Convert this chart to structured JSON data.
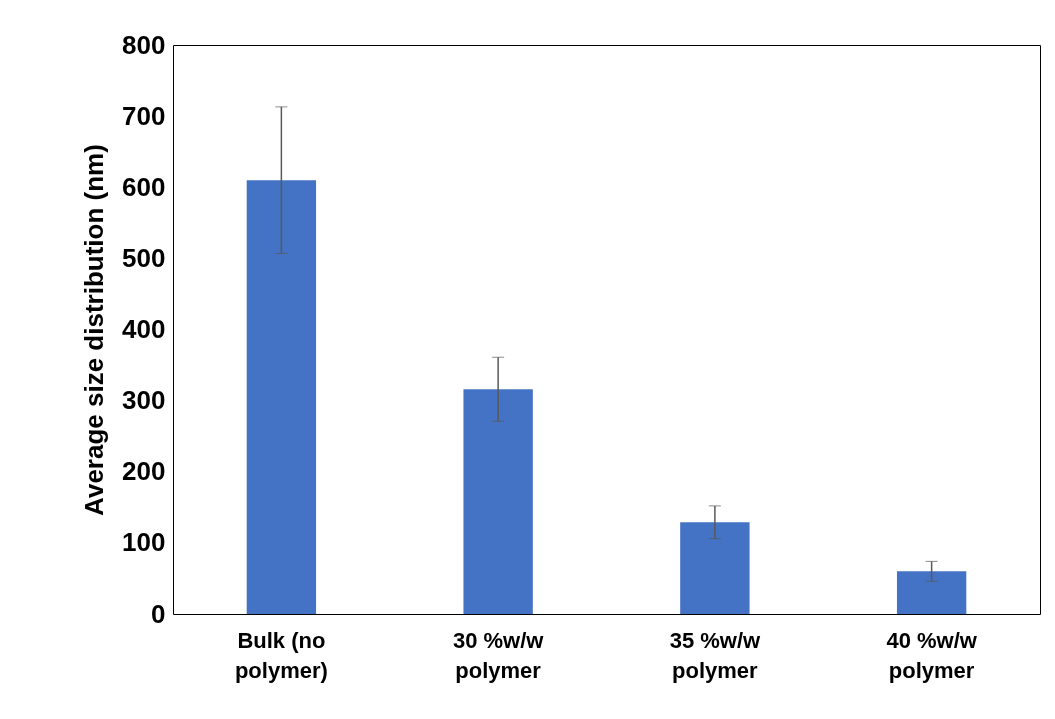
{
  "chart_data": {
    "type": "bar",
    "ylabel": "Average size distribution (nm)",
    "categories": [
      "Bulk (no polymer)",
      "30 %w/w polymer",
      "35 %w/w polymer",
      "40 %w/w polymer"
    ],
    "values": [
      610,
      316,
      129,
      60
    ],
    "errors": [
      103,
      45,
      23,
      14
    ],
    "color": "#4472c4",
    "ylim": [
      0,
      800
    ],
    "yticks": [
      0,
      100,
      200,
      300,
      400,
      500,
      600,
      700,
      800
    ],
    "grid": false
  }
}
